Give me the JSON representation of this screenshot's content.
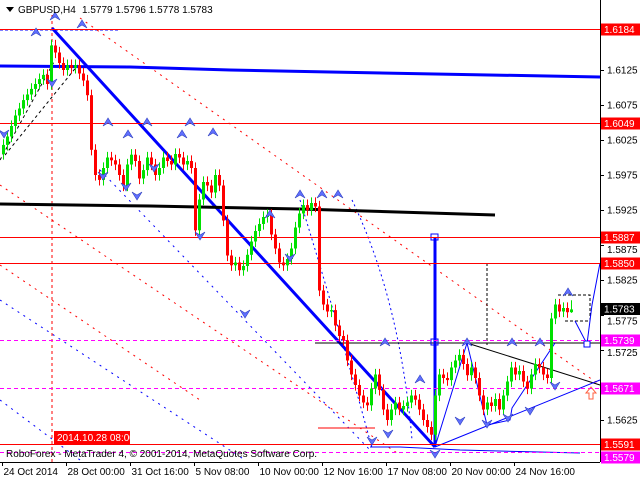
{
  "header": {
    "symbol": "GBPUSD,H4",
    "ohlc_text": "1.5779 1.5796 1.5778 1.5783"
  },
  "footer": {
    "copyright": "RoboForex - MetaTrader 4, © 2001-2014, MetaQuotes Software Corp.",
    "cursor_date": "2014.10.28 08:00"
  },
  "colors": {
    "bull": "#00e000",
    "bear": "#ff0000",
    "level_red": "#ff0000",
    "level_magenta": "#ff00ff",
    "trend_blue": "#0000ff",
    "trend_black": "#000000"
  },
  "chart_data": {
    "type": "candlestick",
    "symbol": "GBPUSD",
    "timeframe": "H4",
    "ylim": [
      1.5555,
      1.6215
    ],
    "y_ticks": [
      "1.6125",
      "1.6075",
      "1.6025",
      "1.5975",
      "1.5925",
      "1.5875",
      "1.5825",
      "1.5775",
      "1.5725",
      "1.5625"
    ],
    "x_ticks": [
      "24 Oct 2014",
      "28 Oct 00:00",
      "31 Oct 16:00",
      "5 Nov 08:00",
      "10 Nov 00:00",
      "12 Nov 16:00",
      "17 Nov 08:00",
      "20 Nov 00:00",
      "24 Nov 16:00"
    ],
    "first_open": 1.6005,
    "closes": [
      1.6018,
      1.603,
      1.6045,
      1.606,
      1.607,
      1.6082,
      1.609,
      1.6098,
      1.6105,
      1.6112,
      1.6118,
      1.6105,
      1.616,
      1.615,
      1.6135,
      1.6125,
      1.6132,
      1.6128,
      1.6132,
      1.612,
      1.611,
      1.6089,
      1.6011,
      1.5975,
      1.5968,
      1.5985,
      1.6,
      1.5996,
      1.599,
      1.5975,
      1.596,
      1.599,
      1.6004,
      1.5995,
      1.597,
      1.5982,
      1.6,
      1.599,
      1.5975,
      1.5985,
      1.6,
      1.5995,
      1.599,
      1.6005,
      1.6,
      1.599,
      1.5995,
      1.5985,
      1.5896,
      1.594,
      1.5965,
      1.596,
      1.595,
      1.5975,
      1.596,
      1.591,
      1.586,
      1.5846,
      1.585,
      1.5839,
      1.5845,
      1.5861,
      1.588,
      1.5895,
      1.5905,
      1.5915,
      1.5918,
      1.589,
      1.587,
      1.585,
      1.5846,
      1.5855,
      1.587,
      1.59,
      1.592,
      1.5932,
      1.5925,
      1.5935,
      1.593,
      1.581,
      1.579,
      1.578,
      1.5782,
      1.576,
      1.5745,
      1.5739,
      1.571,
      1.569,
      1.5675,
      1.566,
      1.565,
      1.5646,
      1.567,
      1.569,
      1.5668,
      1.564,
      1.5625,
      1.564,
      1.565,
      1.564,
      1.5645,
      1.565,
      1.566,
      1.5654,
      1.564,
      1.5625,
      1.5615,
      1.5604,
      1.566,
      1.569,
      1.5685,
      1.5682,
      1.57,
      1.571,
      1.5718,
      1.5705,
      1.5689,
      1.57,
      1.5685,
      1.566,
      1.564,
      1.565,
      1.5645,
      1.5655,
      1.564,
      1.566,
      1.568,
      1.57,
      1.569,
      1.5695,
      1.568,
      1.567,
      1.569,
      1.5705,
      1.57,
      1.569,
      1.5685,
      1.577,
      1.579,
      1.578,
      1.5785,
      1.5779,
      1.5783
    ],
    "last_bar": {
      "open": 1.5779,
      "high": 1.5796,
      "low": 1.5778,
      "close": 1.5783
    },
    "levels": [
      {
        "price": "1.6184",
        "color": "#ff0000",
        "style": "solid"
      },
      {
        "price": "1.6049",
        "color": "#ff0000",
        "style": "solid"
      },
      {
        "price": "1.5887",
        "color": "#ff0000",
        "style": "solid"
      },
      {
        "price": "1.5850",
        "color": "#ff0000",
        "style": "solid"
      },
      {
        "price": "1.5739",
        "color": "#ff00ff",
        "style": "dashed"
      },
      {
        "price": "1.5671",
        "color": "#ff00ff",
        "style": "dashed"
      },
      {
        "price": "1.5591",
        "color": "#ff0000",
        "style": "solid"
      },
      {
        "price": "1.5579",
        "color": "#ff00ff",
        "style": "dashed"
      }
    ],
    "current_price": "1.5783"
  }
}
